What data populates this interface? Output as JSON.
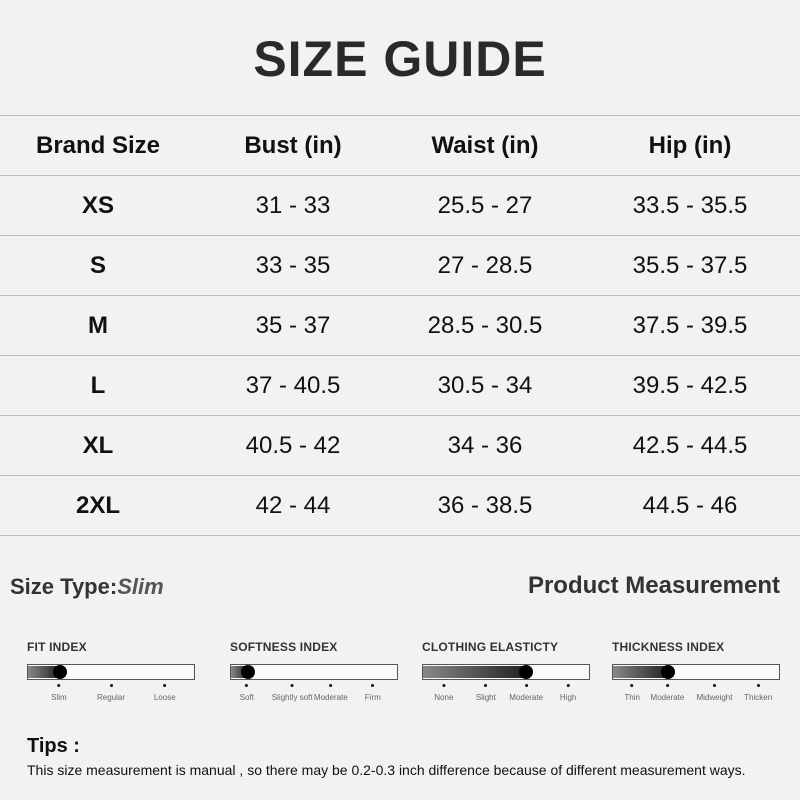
{
  "title": "SIZE GUIDE",
  "table": {
    "headers": [
      "Brand Size",
      "Bust (in)",
      "Waist (in)",
      "Hip (in)"
    ],
    "rows": [
      [
        "XS",
        "31 - 33",
        "25.5 - 27",
        "33.5 - 35.5"
      ],
      [
        "S",
        "33 - 35",
        "27 - 28.5",
        "35.5 - 37.5"
      ],
      [
        "M",
        "35 - 37",
        "28.5 - 30.5",
        "37.5 - 39.5"
      ],
      [
        "L",
        "37 - 40.5",
        "30.5 - 34",
        "39.5 - 42.5"
      ],
      [
        "XL",
        "40.5 - 42",
        "34 - 36",
        "42.5 - 44.5"
      ],
      [
        "2XL",
        "42 - 44",
        "36 - 38.5",
        "44.5 - 46"
      ]
    ]
  },
  "size_type": {
    "label": "Size Type:",
    "value": "Slim"
  },
  "product_measurement": "Product Measurement",
  "indexes": [
    {
      "title": "FIT INDEX",
      "levels": [
        "Slim",
        "Regular",
        "Loose"
      ],
      "selected": "Slim"
    },
    {
      "title": "SOFTNESS INDEX",
      "levels": [
        "Soft",
        "Slightly soft",
        "Moderate",
        "Firm"
      ],
      "selected": "Soft"
    },
    {
      "title": "CLOTHING ELASTICTY",
      "levels": [
        "None",
        "Slight",
        "Moderate",
        "High"
      ],
      "selected": "Moderate"
    },
    {
      "title": "THICKNESS INDEX",
      "levels": [
        "Thin",
        "Moderate",
        "Midweight",
        "Thicken"
      ],
      "selected": "Moderate"
    }
  ],
  "tips": {
    "heading": "Tips :",
    "text": "This size measurement is manual , so there may be 0.2-0.3 inch difference because of different measurement ways."
  }
}
